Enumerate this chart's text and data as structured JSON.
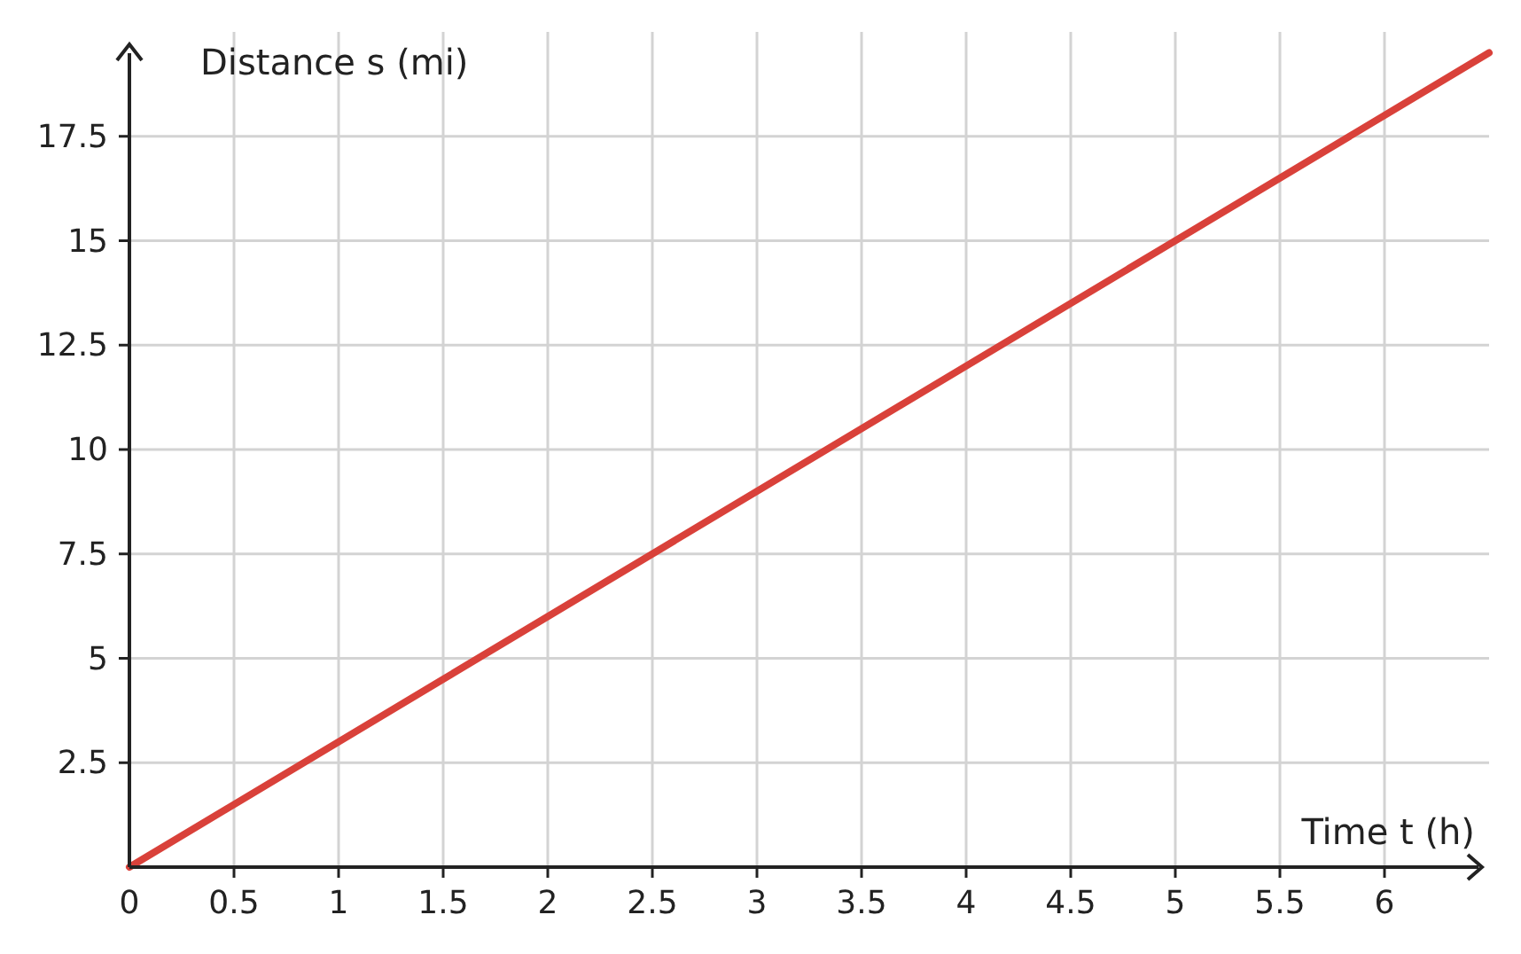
{
  "chart_data": {
    "type": "line",
    "xlabel": "Time t (h)",
    "ylabel": "Distance s (mi)",
    "x": [
      0,
      6.5
    ],
    "series": [
      {
        "color": "#d9413a",
        "values": [
          0,
          19.5
        ]
      }
    ],
    "xlim": [
      0,
      6.5
    ],
    "ylim": [
      0,
      20
    ],
    "xticks": [
      0,
      0.5,
      1,
      1.5,
      2,
      2.5,
      3,
      3.5,
      4,
      4.5,
      5,
      5.5,
      6
    ],
    "yticks": [
      2.5,
      5,
      7.5,
      10,
      12.5,
      15,
      17.5
    ],
    "grid": true,
    "marker": "none",
    "line_style": "solid"
  }
}
